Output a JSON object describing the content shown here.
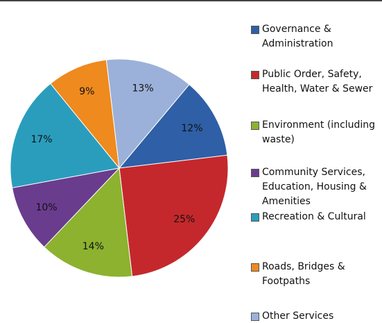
{
  "chart_data": {
    "type": "pie",
    "categories": [
      "Governance & Administration",
      "Public Order, Safety, Health, Water & Sewer",
      "Environment (including waste)",
      "Community Services, Education, Housing & Amenities",
      "Recreation & Cultural",
      "Roads, Bridges & Footpaths",
      "Other Services"
    ],
    "values": [
      12,
      25,
      14,
      10,
      17,
      9,
      13
    ],
    "value_labels": [
      "12%",
      "25%",
      "14%",
      "10%",
      "17%",
      "9%",
      "13%"
    ],
    "colors": [
      "#2f5fa6",
      "#c4282c",
      "#8cb22f",
      "#6a3c8e",
      "#2a9dbd",
      "#ee8a1e",
      "#9bb1d9"
    ],
    "legend": "right"
  }
}
